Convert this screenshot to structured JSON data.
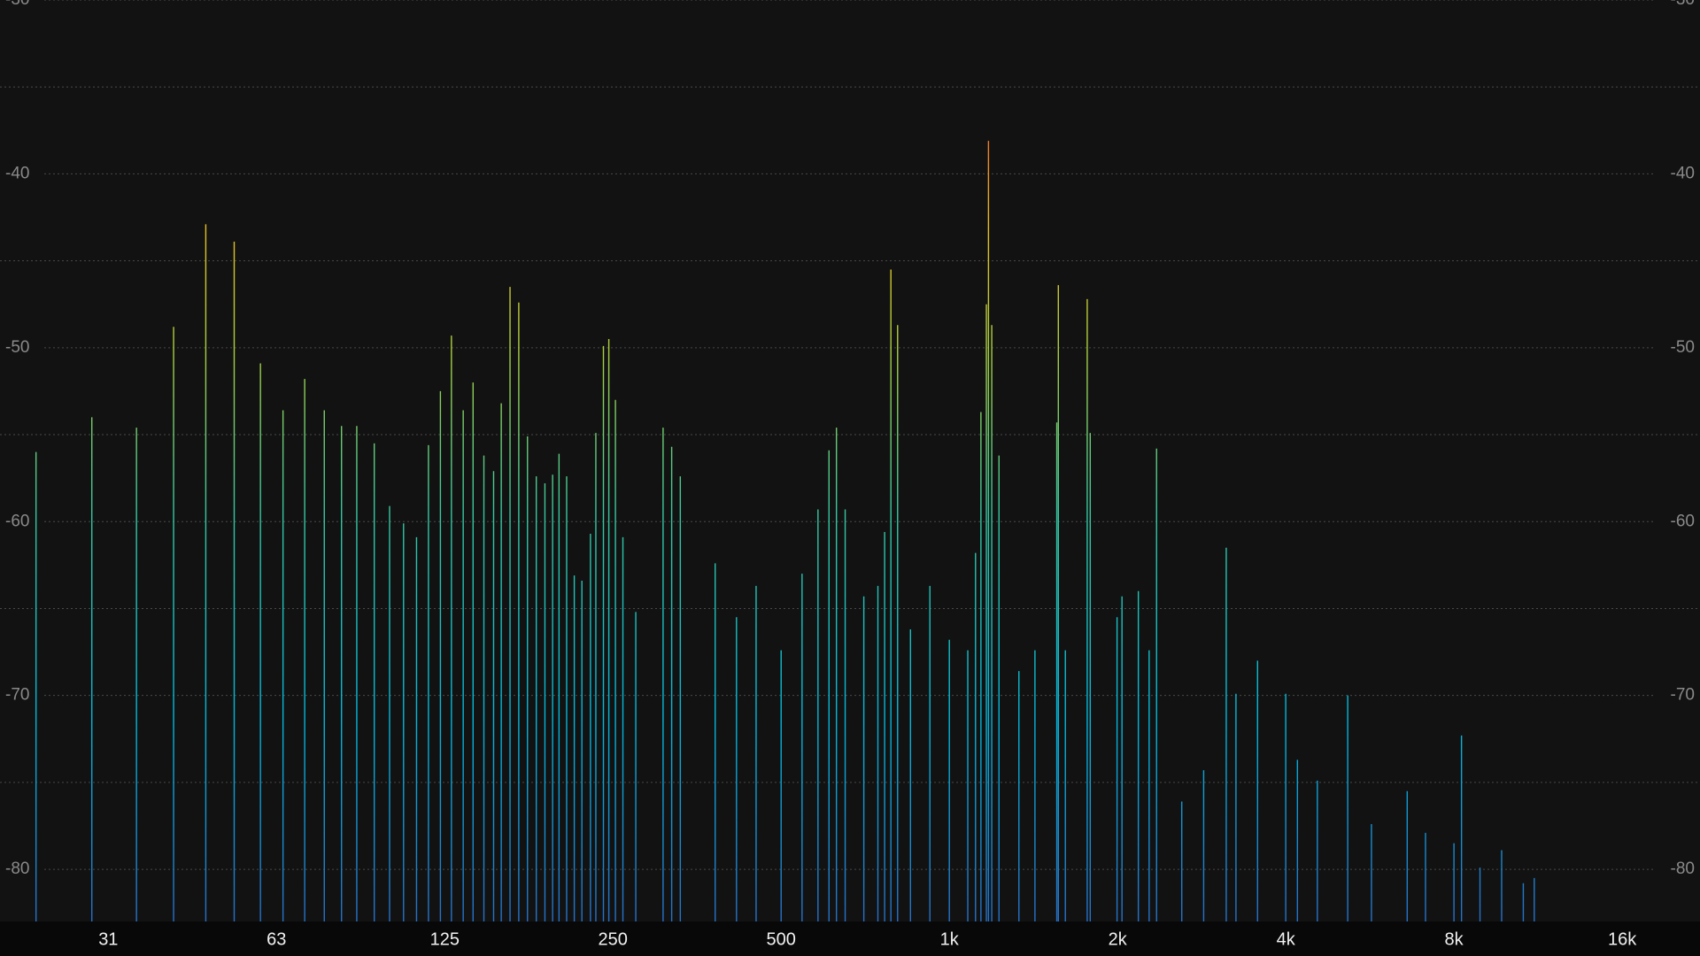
{
  "chart_data": {
    "type": "bar",
    "log_x": true,
    "grid": true,
    "xlim": [
      20,
      22050
    ],
    "ylim": [
      -83,
      -30
    ],
    "xticks": [
      {
        "value": 31.25,
        "label": "31"
      },
      {
        "value": 62.5,
        "label": "63"
      },
      125,
      250,
      500,
      {
        "value": 1000,
        "label": "1k"
      },
      {
        "value": 2000,
        "label": "2k"
      },
      {
        "value": 4000,
        "label": "4k"
      },
      {
        "value": 8000,
        "label": "8k"
      },
      {
        "value": 16000,
        "label": "16k"
      }
    ],
    "yticks": [
      -30,
      -40,
      -50,
      -60,
      -70,
      -80
    ],
    "minor_yticks": [
      -35,
      -45,
      -55,
      -65,
      -75
    ],
    "x": [
      23.2,
      29.2,
      35.1,
      40.9,
      46.7,
      52.5,
      58.5,
      64.2,
      70.2,
      76.1,
      81.7,
      87,
      93.5,
      99.6,
      105.5,
      111.3,
      116.9,
      122.8,
      128.5,
      134.9,
      140.5,
      146.9,
      152.9,
      157.8,
      163.6,
      169.6,
      175.8,
      182.3,
      188.9,
      195,
      200.2,
      206.6,
      213.2,
      220,
      227.9,
      233,
      240.4,
      245.8,
      252.6,
      260.5,
      274.7,
      307.4,
      318.5,
      330,
      381,
      416,
      451,
      500,
      545,
      582,
      609,
      628,
      651,
      703,
      745,
      766,
      786,
      808,
      852,
      923,
      1000,
      1079,
      1114,
      1139,
      1165,
      1175,
      1191,
      1227,
      1332,
      1423,
      1557,
      1567,
      1613,
      1765,
      1787,
      1996,
      2037,
      2179,
      2278,
      2349,
      2606,
      2852,
      3130,
      3258,
      3561,
      4000,
      4197,
      4556,
      5164,
      5694,
      6598,
      7115,
      8000,
      8253,
      8906,
      9737,
      10646,
      11137
    ],
    "values": [
      -56.0,
      -54.0,
      -54.6,
      -48.8,
      -42.9,
      -43.9,
      -50.9,
      -53.6,
      -51.8,
      -53.6,
      -54.5,
      -54.5,
      -55.5,
      -59.1,
      -60.1,
      -60.9,
      -55.6,
      -52.5,
      -49.3,
      -53.6,
      -52.0,
      -56.2,
      -57.1,
      -53.2,
      -46.5,
      -47.4,
      -55.1,
      -57.4,
      -57.8,
      -57.3,
      -56.1,
      -57.4,
      -63.1,
      -63.4,
      -60.7,
      -54.9,
      -49.9,
      -49.5,
      -53.0,
      -60.9,
      -65.2,
      -54.6,
      -55.7,
      -57.4,
      -62.4,
      -65.5,
      -63.7,
      -67.4,
      -63.0,
      -59.3,
      -55.9,
      -54.6,
      -59.3,
      -64.3,
      -63.7,
      -60.6,
      -45.5,
      -48.7,
      -66.2,
      -63.7,
      -66.8,
      -67.4,
      -61.8,
      -53.7,
      -47.5,
      -38.1,
      -48.7,
      -56.2,
      -68.6,
      -67.4,
      -54.3,
      -46.4,
      -67.4,
      -47.2,
      -54.9,
      -65.5,
      -64.3,
      -64.0,
      -67.4,
      -55.8,
      -76.1,
      -74.3,
      -61.5,
      -69.9,
      -68.0,
      -69.9,
      -73.7,
      -74.9,
      -70.0,
      -77.4,
      -75.5,
      -77.9,
      -78.5,
      -72.3,
      -79.9,
      -78.9,
      -80.8,
      -80.5
    ]
  }
}
